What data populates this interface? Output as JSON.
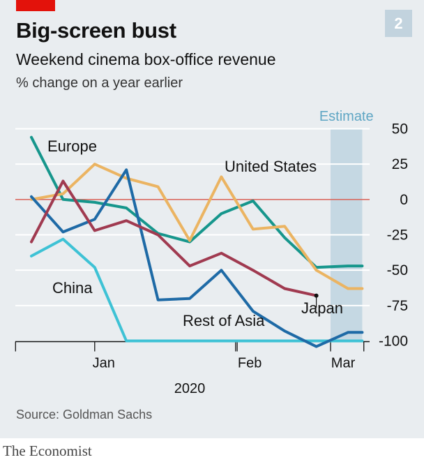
{
  "header": {
    "title": "Big-screen bust",
    "chart_number": "2",
    "accent_color": "#e3120b",
    "badge_color": "#c2d3de"
  },
  "footer": {
    "source": "Source: Goldman Sachs",
    "brand": "The Economist"
  },
  "chart_data": {
    "type": "line",
    "title": "Weekend cinema box-office revenue",
    "subtitle": "% change on a year earlier",
    "xlabel": "2020",
    "ylabel": "",
    "ylim": [
      -100,
      50
    ],
    "yticks": [
      50,
      25,
      0,
      -25,
      -50,
      -75,
      -100
    ],
    "xlim": [
      0,
      10.6
    ],
    "xticks": [
      {
        "pos": 0,
        "label": ""
      },
      {
        "pos": 2.5,
        "label": "Jan"
      },
      {
        "pos": 6.95,
        "label": ""
      },
      {
        "pos": 7,
        "label": "Feb"
      },
      {
        "pos": 9.95,
        "label": "Mar"
      },
      {
        "pos": 11,
        "label": ""
      }
    ],
    "estimate": {
      "label": "Estimate",
      "start": 9.95,
      "end": 10.95
    },
    "grid": true,
    "series": [
      {
        "name": "China",
        "color": "#3ec2d5",
        "values": [
          [
            0.5,
            -40
          ],
          [
            1.5,
            -28
          ],
          [
            2.5,
            -48
          ],
          [
            3.5,
            -100
          ],
          [
            4.5,
            -100
          ],
          [
            5.5,
            -100
          ],
          [
            6.5,
            -100
          ],
          [
            7.5,
            -100
          ],
          [
            8.5,
            -100
          ],
          [
            9.5,
            -100
          ],
          [
            10.5,
            -100
          ],
          [
            10.95,
            -100
          ]
        ]
      },
      {
        "name": "Europe",
        "color": "#16968c",
        "values": [
          [
            0.5,
            44
          ],
          [
            1.5,
            0
          ],
          [
            2.5,
            -2
          ],
          [
            3.5,
            -6
          ],
          [
            4.5,
            -24
          ],
          [
            5.5,
            -30
          ],
          [
            6.5,
            -10
          ],
          [
            7.5,
            -1
          ],
          [
            8.5,
            -27
          ],
          [
            9.5,
            -48
          ],
          [
            10.5,
            -47
          ],
          [
            10.95,
            -47
          ]
        ]
      },
      {
        "name": "United States",
        "color": "#ebb462",
        "values": [
          [
            0.5,
            0
          ],
          [
            1.5,
            4
          ],
          [
            2.5,
            25
          ],
          [
            3.5,
            15
          ],
          [
            4.5,
            9
          ],
          [
            5.5,
            -29
          ],
          [
            6.5,
            16
          ],
          [
            7.5,
            -21
          ],
          [
            8.5,
            -19
          ],
          [
            9.5,
            -50
          ],
          [
            10.5,
            -63
          ],
          [
            10.95,
            -63
          ]
        ]
      },
      {
        "name": "Rest of Asia",
        "color": "#1e6aa6",
        "values": [
          [
            0.5,
            2
          ],
          [
            1.5,
            -23
          ],
          [
            2.5,
            -14
          ],
          [
            3.5,
            21
          ],
          [
            4.5,
            -71
          ],
          [
            5.5,
            -70
          ],
          [
            6.5,
            -50
          ],
          [
            7.5,
            -79
          ],
          [
            8.5,
            -93
          ],
          [
            9.5,
            -104
          ],
          [
            10.5,
            -94
          ],
          [
            10.95,
            -94
          ]
        ]
      },
      {
        "name": "Japan",
        "color": "#a03a50",
        "values": [
          [
            0.5,
            -30
          ],
          [
            1.5,
            13
          ],
          [
            2.5,
            -22
          ],
          [
            3.5,
            -15
          ],
          [
            4.5,
            -25
          ],
          [
            5.5,
            -47
          ],
          [
            6.5,
            -38
          ],
          [
            7.5,
            -50
          ],
          [
            8.5,
            -63
          ],
          [
            9.5,
            -68
          ]
        ]
      }
    ],
    "labels": {
      "europe": "Europe",
      "us": "United States",
      "china": "China",
      "japan": "Japan",
      "rest_of_asia": "Rest of Asia"
    }
  }
}
